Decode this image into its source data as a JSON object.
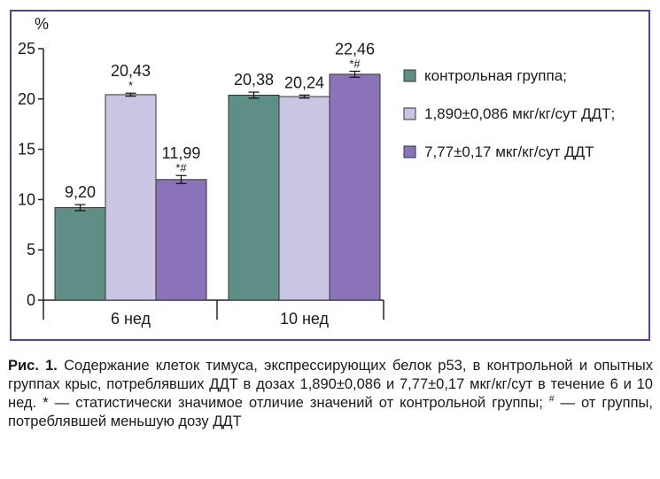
{
  "chart_data": {
    "type": "bar",
    "ylabel": "%",
    "ylim": [
      0,
      25
    ],
    "yticks": [
      0,
      5,
      10,
      15,
      20,
      25
    ],
    "categories": [
      "6 нед",
      "10 нед"
    ],
    "series": [
      {
        "name": "контрольная группа;",
        "color": "#5f8e87",
        "values": [
          9.2,
          20.38
        ],
        "labels": [
          "9,20",
          "20,38"
        ],
        "errors": [
          0.3,
          0.3
        ],
        "marks": [
          "",
          ""
        ]
      },
      {
        "name": "1,890±0,086 мкг/кг/сут ДДТ;",
        "color": "#c9c5e2",
        "values": [
          20.43,
          20.24
        ],
        "labels": [
          "20,43",
          "20,24"
        ],
        "errors": [
          0.15,
          0.15
        ],
        "marks": [
          "*",
          ""
        ]
      },
      {
        "name": "7,77±0,17 мкг/кг/сут ДДТ",
        "color": "#8a73b8",
        "values": [
          11.99,
          22.46
        ],
        "labels": [
          "11,99",
          "22,46"
        ],
        "errors": [
          0.4,
          0.3
        ],
        "marks": [
          "*#",
          "*#"
        ]
      }
    ],
    "grid": false,
    "legend_position": "right"
  },
  "caption": {
    "prefix": "Рис. 1.",
    "text_part1": " Содержание клеток тимуса, экспрессирующих белок p53, в контрольной и опытных группах крыс, потреблявших ДДТ в дозах 1,890±0,086 и 7,77±0,17 мкг/кг/сут в течение 6 и 10 нед. * — статистически значимое отличие значений от контрольной группы; ",
    "sup": "#",
    "text_part2": " — от группы, потреблявшей меньшую дозу ДДТ"
  }
}
